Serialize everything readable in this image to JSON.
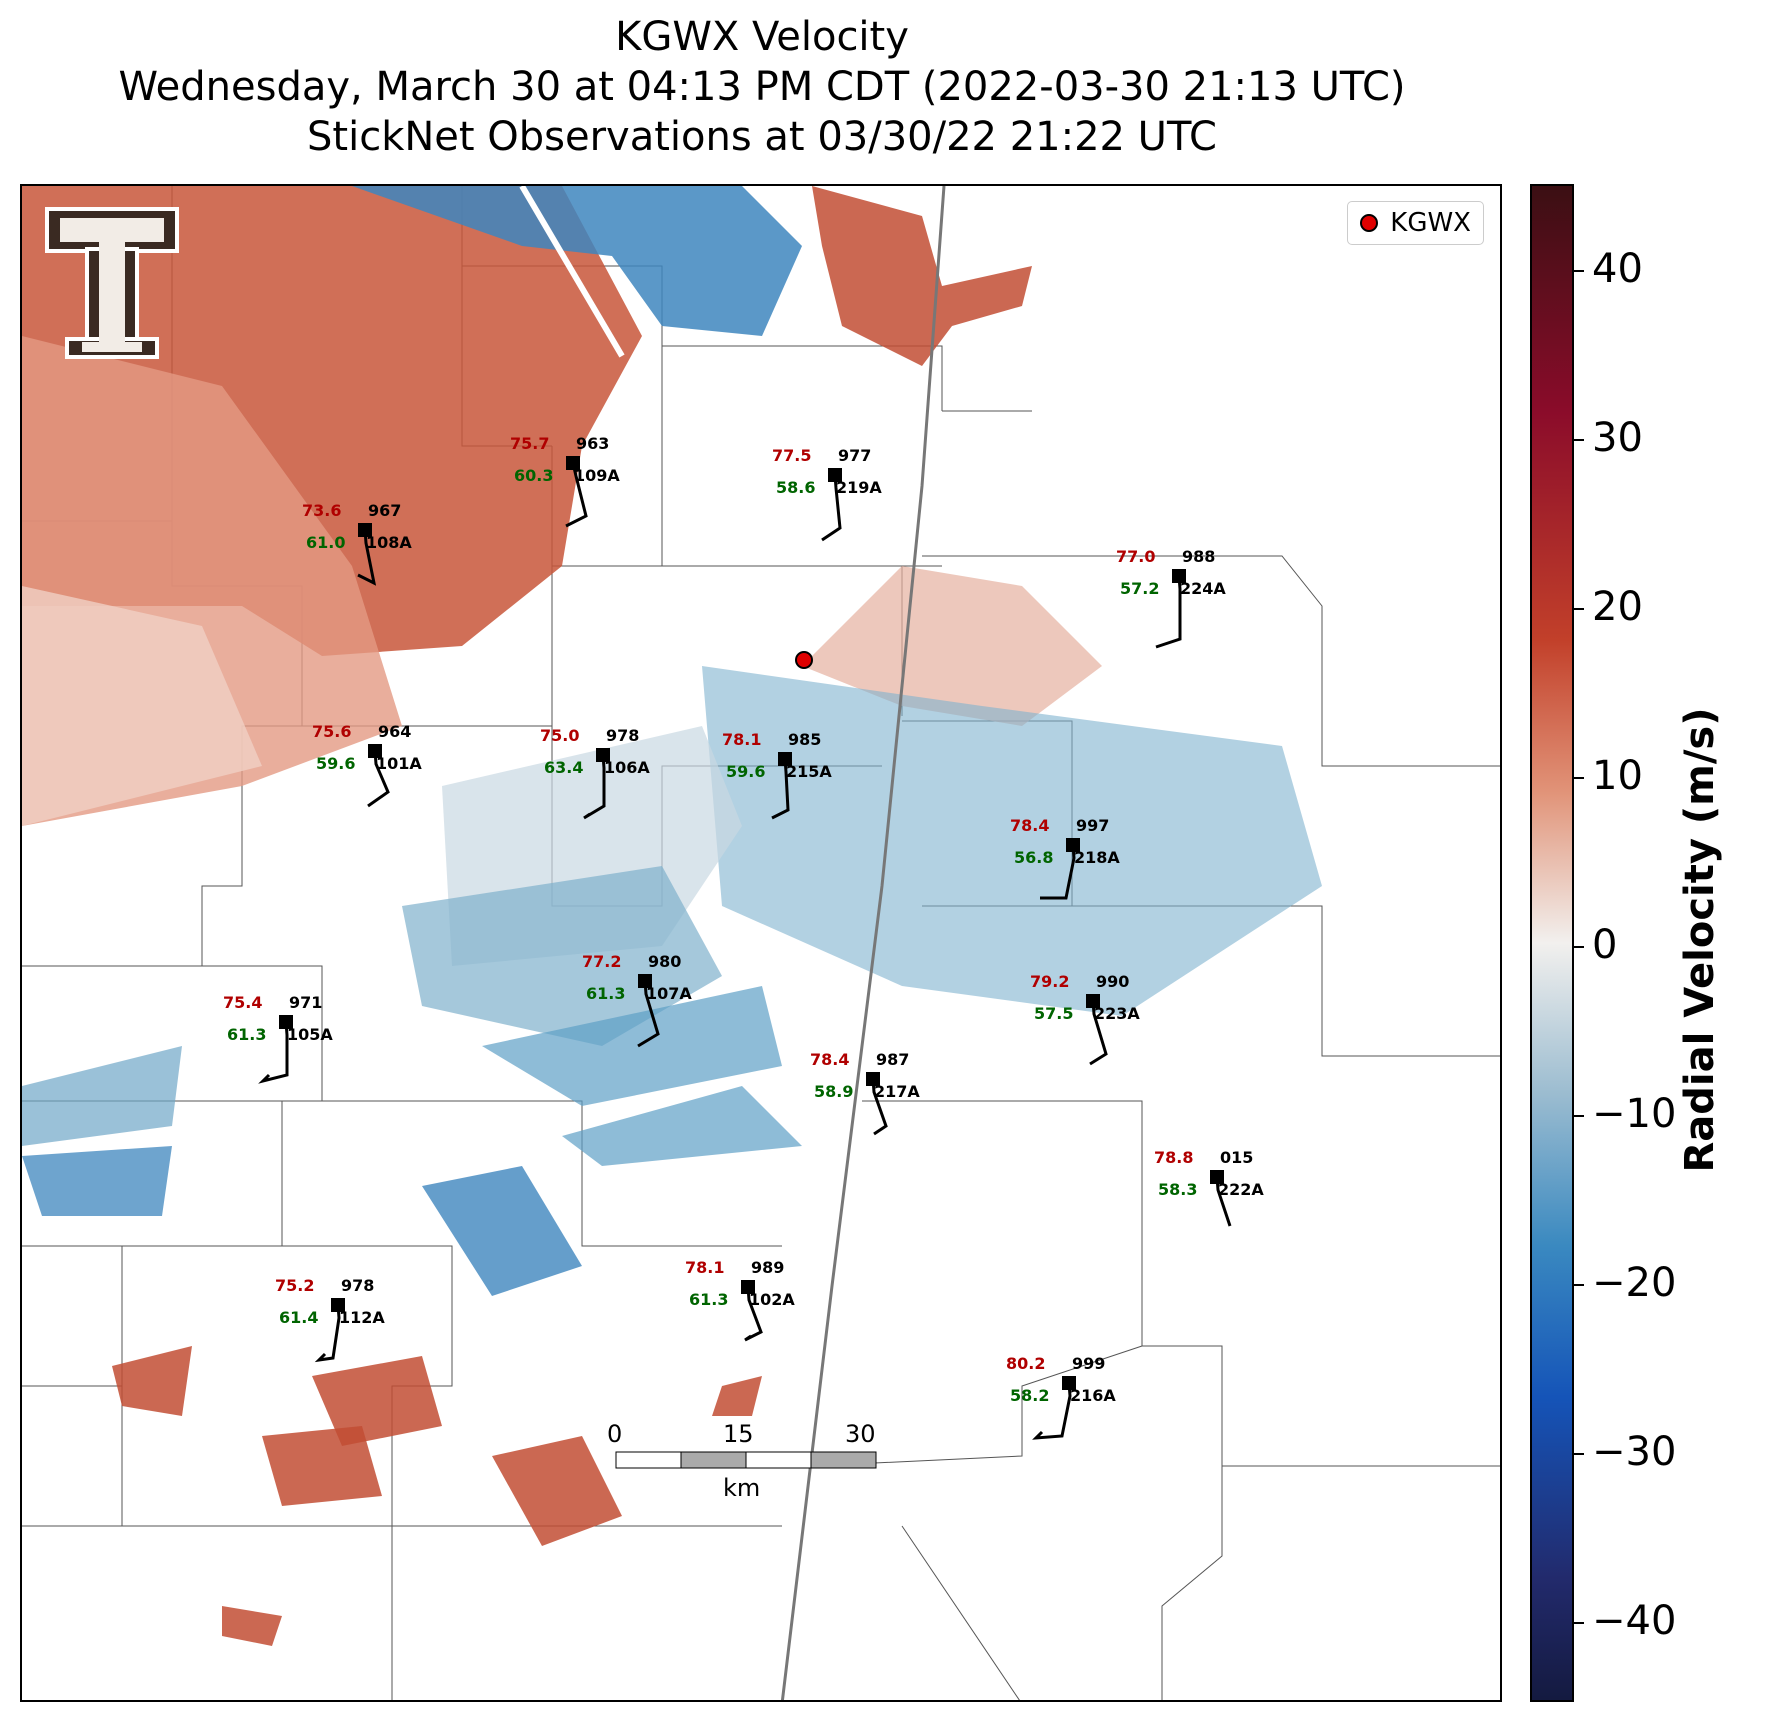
{
  "title": {
    "line1": "KGWX Velocity",
    "line2": "Wednesday, March 30 at 04:13 PM CDT (2022-03-30 21:13 UTC)",
    "line3": "StickNet Observations at 03/30/22 21:22 UTC"
  },
  "legend": {
    "label": "KGWX"
  },
  "colorbar": {
    "label": "Radial Velocity (m/s)",
    "ticks": [
      "40",
      "30",
      "20",
      "10",
      "0",
      "−10",
      "−20",
      "−30",
      "−40"
    ]
  },
  "scalebar": {
    "ticks": [
      "0",
      "15",
      "30"
    ],
    "unit": "km"
  },
  "logo": {
    "name": "texas-tech-double-t-logo"
  },
  "stations": [
    {
      "id": "109A",
      "temp": "75.7",
      "dew": "60.3",
      "pres": "963"
    },
    {
      "id": "108A",
      "temp": "73.6",
      "dew": "61.0",
      "pres": "967"
    },
    {
      "id": "219A",
      "temp": "77.5",
      "dew": "58.6",
      "pres": "977"
    },
    {
      "id": "224A",
      "temp": "77.0",
      "dew": "57.2",
      "pres": "988"
    },
    {
      "id": "101A",
      "temp": "75.6",
      "dew": "59.6",
      "pres": "964"
    },
    {
      "id": "106A",
      "temp": "75.0",
      "dew": "63.4",
      "pres": "978"
    },
    {
      "id": "215A",
      "temp": "78.1",
      "dew": "59.6",
      "pres": "985"
    },
    {
      "id": "218A",
      "temp": "78.4",
      "dew": "56.8",
      "pres": "997"
    },
    {
      "id": "107A",
      "temp": "77.2",
      "dew": "61.3",
      "pres": "980"
    },
    {
      "id": "223A",
      "temp": "79.2",
      "dew": "57.5",
      "pres": "990"
    },
    {
      "id": "105A",
      "temp": "75.4",
      "dew": "61.3",
      "pres": "971"
    },
    {
      "id": "217A",
      "temp": "78.4",
      "dew": "58.9",
      "pres": "987"
    },
    {
      "id": "222A",
      "temp": "78.8",
      "dew": "58.3",
      "pres": "015"
    },
    {
      "id": "112A",
      "temp": "75.2",
      "dew": "61.4",
      "pres": "978"
    },
    {
      "id": "102A",
      "temp": "78.1",
      "dew": "61.3",
      "pres": "989"
    },
    {
      "id": "216A",
      "temp": "80.2",
      "dew": "58.2",
      "pres": "999"
    }
  ]
}
